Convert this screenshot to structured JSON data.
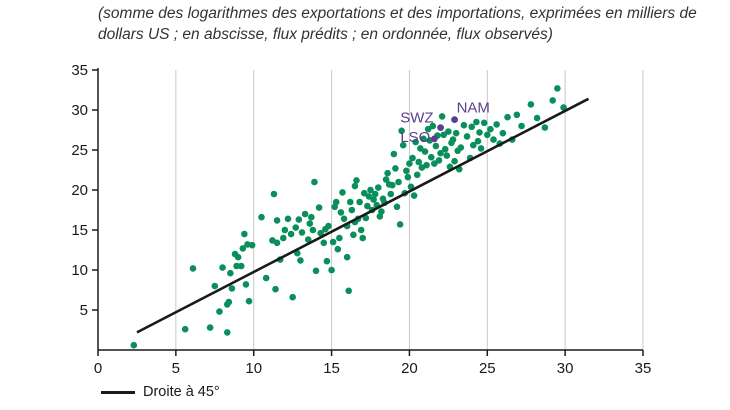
{
  "subtitle": "(somme des logarithmes des exportations et des importations, exprimées en milliers de dollars US ; en abscisse, flux prédits ; en ordonnée, flux observés)",
  "colors": {
    "points": "#0a8f5c",
    "highlight": "#5b3f8c",
    "line": "#1a1a1a",
    "grid": "#c8c8c8",
    "axis": "#1a1a1a"
  },
  "chart_data": {
    "type": "scatter",
    "title": "",
    "xlabel": "flux prédits",
    "ylabel": "flux observés",
    "xlim": [
      0,
      35
    ],
    "ylim": [
      0,
      35
    ],
    "xticks": [
      0,
      5,
      10,
      15,
      20,
      25,
      30,
      35
    ],
    "yticks": [
      5,
      10,
      15,
      20,
      25,
      30,
      35
    ],
    "grid": "vertical",
    "reference_line": {
      "name": "Droite à 45°",
      "x": [
        2.5,
        31.5
      ],
      "y": [
        2.2,
        31.4
      ]
    },
    "legend": {
      "label": "Droite à 45°",
      "position": "bottom-left"
    },
    "highlighted": [
      {
        "label": "NAM",
        "x": 22.9,
        "y": 28.8
      },
      {
        "label": "SWZ",
        "x": 22.0,
        "y": 27.8
      },
      {
        "label": "LSO",
        "x": 21.6,
        "y": 26.4
      }
    ],
    "series": [
      {
        "name": "pays",
        "points": [
          [
            2.3,
            0.6
          ],
          [
            5.6,
            2.6
          ],
          [
            6.1,
            10.2
          ],
          [
            7.2,
            2.8
          ],
          [
            7.5,
            8.0
          ],
          [
            7.8,
            4.8
          ],
          [
            8.0,
            10.3
          ],
          [
            8.3,
            2.2
          ],
          [
            8.3,
            5.7
          ],
          [
            8.4,
            6.0
          ],
          [
            8.5,
            9.6
          ],
          [
            8.6,
            7.7
          ],
          [
            8.8,
            12.0
          ],
          [
            8.9,
            10.5
          ],
          [
            9.0,
            11.6
          ],
          [
            9.2,
            10.5
          ],
          [
            9.3,
            12.7
          ],
          [
            9.4,
            14.5
          ],
          [
            9.5,
            8.2
          ],
          [
            9.6,
            13.2
          ],
          [
            9.7,
            6.1
          ],
          [
            9.9,
            13.1
          ],
          [
            10.5,
            16.6
          ],
          [
            10.8,
            9.0
          ],
          [
            11.2,
            13.7
          ],
          [
            11.3,
            19.5
          ],
          [
            11.4,
            7.6
          ],
          [
            11.5,
            13.4
          ],
          [
            11.5,
            16.2
          ],
          [
            11.7,
            11.3
          ],
          [
            11.9,
            14.0
          ],
          [
            12.0,
            15.0
          ],
          [
            12.2,
            16.4
          ],
          [
            12.4,
            14.5
          ],
          [
            12.5,
            6.6
          ],
          [
            12.7,
            15.3
          ],
          [
            12.8,
            12.1
          ],
          [
            12.9,
            16.3
          ],
          [
            13.0,
            11.2
          ],
          [
            13.1,
            14.7
          ],
          [
            13.3,
            17.0
          ],
          [
            13.5,
            13.8
          ],
          [
            13.6,
            15.8
          ],
          [
            13.7,
            16.6
          ],
          [
            13.8,
            15.0
          ],
          [
            13.9,
            21.0
          ],
          [
            14.0,
            9.9
          ],
          [
            14.2,
            17.8
          ],
          [
            14.3,
            14.6
          ],
          [
            14.5,
            13.4
          ],
          [
            14.6,
            15.1
          ],
          [
            14.7,
            11.1
          ],
          [
            14.8,
            15.5
          ],
          [
            15.0,
            10.0
          ],
          [
            15.1,
            13.5
          ],
          [
            15.2,
            17.9
          ],
          [
            15.3,
            18.5
          ],
          [
            15.4,
            12.6
          ],
          [
            15.5,
            14.0
          ],
          [
            15.6,
            17.2
          ],
          [
            15.7,
            19.7
          ],
          [
            15.8,
            16.4
          ],
          [
            16.0,
            15.5
          ],
          [
            16.0,
            11.6
          ],
          [
            16.1,
            7.4
          ],
          [
            16.2,
            18.5
          ],
          [
            16.3,
            17.5
          ],
          [
            16.4,
            14.4
          ],
          [
            16.5,
            16.0
          ],
          [
            16.5,
            20.5
          ],
          [
            16.6,
            21.2
          ],
          [
            16.7,
            16.4
          ],
          [
            16.8,
            18.5
          ],
          [
            16.9,
            15.0
          ],
          [
            17.0,
            14.0
          ],
          [
            17.1,
            19.6
          ],
          [
            17.2,
            16.5
          ],
          [
            17.3,
            18.0
          ],
          [
            17.4,
            19.2
          ],
          [
            17.5,
            20.0
          ],
          [
            17.6,
            17.5
          ],
          [
            17.7,
            18.8
          ],
          [
            17.8,
            19.5
          ],
          [
            17.9,
            18.1
          ],
          [
            18.0,
            20.3
          ],
          [
            18.1,
            16.7
          ],
          [
            18.2,
            17.3
          ],
          [
            18.3,
            18.9
          ],
          [
            18.4,
            18.4
          ],
          [
            18.5,
            21.3
          ],
          [
            18.6,
            22.1
          ],
          [
            18.7,
            20.7
          ],
          [
            18.8,
            19.5
          ],
          [
            18.9,
            20.6
          ],
          [
            19.0,
            24.5
          ],
          [
            19.1,
            22.7
          ],
          [
            19.2,
            17.9
          ],
          [
            19.3,
            21.0
          ],
          [
            19.4,
            15.7
          ],
          [
            19.5,
            27.4
          ],
          [
            19.6,
            25.6
          ],
          [
            19.7,
            19.6
          ],
          [
            19.8,
            22.4
          ],
          [
            19.9,
            21.6
          ],
          [
            20.0,
            23.3
          ],
          [
            20.1,
            20.4
          ],
          [
            20.2,
            24.0
          ],
          [
            20.3,
            19.3
          ],
          [
            20.4,
            26.0
          ],
          [
            20.5,
            21.9
          ],
          [
            20.6,
            23.5
          ],
          [
            20.7,
            25.2
          ],
          [
            20.8,
            22.8
          ],
          [
            20.9,
            26.4
          ],
          [
            21.0,
            24.8
          ],
          [
            21.1,
            23.1
          ],
          [
            21.2,
            27.6
          ],
          [
            21.3,
            26.2
          ],
          [
            21.4,
            24.1
          ],
          [
            21.5,
            28.0
          ],
          [
            21.6,
            23.3
          ],
          [
            21.7,
            25.5
          ],
          [
            21.8,
            26.8
          ],
          [
            21.9,
            23.7
          ],
          [
            22.0,
            24.6
          ],
          [
            22.1,
            29.2
          ],
          [
            22.2,
            26.9
          ],
          [
            22.3,
            25.1
          ],
          [
            22.4,
            24.3
          ],
          [
            22.5,
            27.3
          ],
          [
            22.6,
            22.9
          ],
          [
            22.7,
            25.9
          ],
          [
            22.8,
            26.3
          ],
          [
            22.9,
            23.6
          ],
          [
            23.0,
            27.1
          ],
          [
            23.1,
            24.9
          ],
          [
            23.2,
            22.6
          ],
          [
            23.3,
            25.3
          ],
          [
            23.5,
            28.1
          ],
          [
            23.7,
            26.7
          ],
          [
            23.9,
            24.0
          ],
          [
            24.0,
            27.9
          ],
          [
            24.1,
            25.6
          ],
          [
            24.3,
            28.5
          ],
          [
            24.4,
            26.1
          ],
          [
            24.5,
            27.2
          ],
          [
            24.6,
            25.2
          ],
          [
            24.8,
            28.4
          ],
          [
            25.0,
            26.9
          ],
          [
            25.2,
            27.6
          ],
          [
            25.4,
            26.3
          ],
          [
            25.6,
            28.2
          ],
          [
            25.8,
            25.8
          ],
          [
            26.0,
            27.1
          ],
          [
            26.3,
            29.1
          ],
          [
            26.6,
            26.3
          ],
          [
            26.9,
            29.4
          ],
          [
            27.2,
            28.0
          ],
          [
            27.8,
            30.7
          ],
          [
            28.2,
            29.0
          ],
          [
            28.7,
            27.8
          ],
          [
            29.2,
            31.2
          ],
          [
            29.5,
            32.7
          ],
          [
            29.9,
            30.3
          ]
        ]
      }
    ]
  }
}
